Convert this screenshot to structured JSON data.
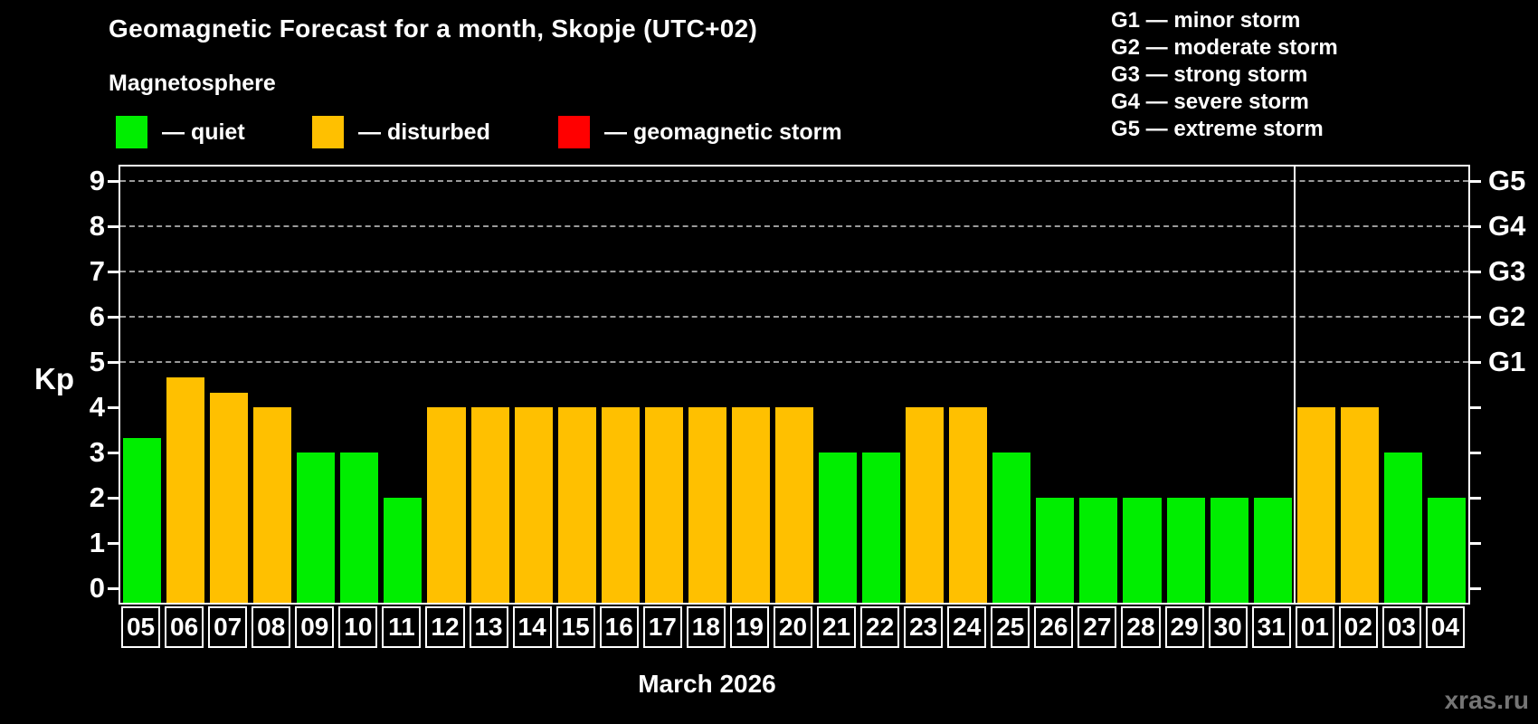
{
  "header": {
    "title": "Geomagnetic Forecast for a month, Skopje (UTC+02)",
    "subtitle": "Magnetosphere"
  },
  "legend": {
    "items": [
      {
        "name": "quiet",
        "label": "— quiet",
        "color": "#00ee00"
      },
      {
        "name": "disturbed",
        "label": "— disturbed",
        "color": "#ffc000"
      },
      {
        "name": "storm",
        "label": "— geomagnetic storm",
        "color": "#ff0000"
      }
    ]
  },
  "g_legend": {
    "lines": [
      "G1 — minor storm",
      "G2 — moderate storm",
      "G3 — strong storm",
      "G4 — severe storm",
      "G5 — extreme storm"
    ]
  },
  "axis": {
    "kp_label": "Kp",
    "left_ticks": [
      0,
      1,
      2,
      3,
      4,
      5,
      6,
      7,
      8,
      9
    ],
    "right_labels": [
      {
        "label": "G1",
        "kp": 5
      },
      {
        "label": "G2",
        "kp": 6
      },
      {
        "label": "G3",
        "kp": 7
      },
      {
        "label": "G4",
        "kp": 8
      },
      {
        "label": "G5",
        "kp": 9
      }
    ]
  },
  "footer": {
    "month_label": "March 2026",
    "watermark": "xras.ru"
  },
  "chart_data": {
    "type": "bar",
    "title": "Geomagnetic Forecast for a month, Skopje (UTC+02)",
    "xlabel": "March 2026",
    "ylabel": "Kp",
    "ylim": [
      0,
      9.4
    ],
    "grid": "dashed horizontal lines at Kp 5,6,7,8,9",
    "legend_position": "top-left statuses, top-right G-scale",
    "gridlines_kp": [
      5,
      6,
      7,
      8,
      9
    ],
    "month_boundary_after_index": 26,
    "categories": [
      "05",
      "06",
      "07",
      "08",
      "09",
      "10",
      "11",
      "12",
      "13",
      "14",
      "15",
      "16",
      "17",
      "18",
      "19",
      "20",
      "21",
      "22",
      "23",
      "24",
      "25",
      "26",
      "27",
      "28",
      "29",
      "30",
      "31",
      "01",
      "02",
      "03",
      "04"
    ],
    "values": [
      3.33,
      4.67,
      4.33,
      4,
      3,
      3,
      2,
      4,
      4,
      4,
      4,
      4,
      4,
      4,
      4,
      4,
      3,
      3,
      4,
      4,
      3,
      2,
      2,
      2,
      2,
      2,
      2,
      4,
      4,
      3,
      2
    ],
    "statuses": [
      "quiet",
      "disturbed",
      "disturbed",
      "disturbed",
      "quiet",
      "quiet",
      "quiet",
      "disturbed",
      "disturbed",
      "disturbed",
      "disturbed",
      "disturbed",
      "disturbed",
      "disturbed",
      "disturbed",
      "disturbed",
      "quiet",
      "quiet",
      "disturbed",
      "disturbed",
      "quiet",
      "quiet",
      "quiet",
      "quiet",
      "quiet",
      "quiet",
      "quiet",
      "disturbed",
      "disturbed",
      "quiet",
      "quiet"
    ],
    "status_colors": {
      "quiet": "#00ee00",
      "disturbed": "#ffc000",
      "storm": "#ff0000"
    }
  }
}
